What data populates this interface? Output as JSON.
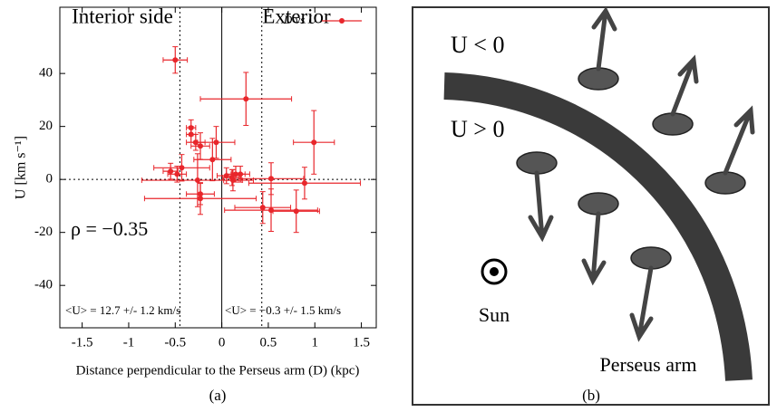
{
  "chart_data": {
    "type": "scatter",
    "xlabel": "Distance perpendicular to the Perseus arm (D) (kpc)",
    "ylabel": "U [km s⁻¹]",
    "caption": "(a)",
    "region_labels": [
      "Interior side",
      "Exterior"
    ],
    "annotations": [
      "ρ = −0.35",
      "<U> = 12.7 +/- 1.2 km/s",
      "<U> = −0.3 +/- 1.5 km/s"
    ],
    "xlim": [
      -1.74,
      1.66
    ],
    "ylim": [
      -56,
      65
    ],
    "xticks": [
      -1.5,
      -1,
      -0.5,
      0,
      0.5,
      1,
      1.5
    ],
    "yticks": [
      -40,
      -20,
      0,
      20,
      40
    ],
    "dotted_vlines": [
      -0.45,
      0.43
    ],
    "legend": "upper right",
    "series": [
      {
        "name": "D vs U",
        "color": "#e8262b",
        "x": [
          -0.5,
          0.26,
          0.99,
          -0.33,
          -0.33,
          -0.28,
          -0.23,
          -0.06,
          -0.1,
          -0.43,
          -0.55,
          -0.48,
          -0.26,
          -0.23,
          -0.23,
          0.05,
          0.11,
          0.15,
          0.2,
          0.12,
          0.53,
          0.89,
          0.44,
          0.53,
          0.8
        ],
        "values": [
          45.1,
          30.4,
          14,
          19.5,
          17,
          14,
          12.6,
          14,
          7.5,
          4.4,
          3.1,
          2,
          -0.3,
          -5.5,
          -7.2,
          1.4,
          0.7,
          2,
          2,
          -0.3,
          0.3,
          -1.4,
          -10.6,
          -11.6,
          -12
        ],
        "xerr": [
          0.13,
          0.49,
          0.22,
          0.05,
          0.05,
          0.1,
          0.1,
          0.2,
          0.2,
          0.3,
          0.08,
          0.1,
          0.6,
          0.15,
          0.6,
          0.1,
          0.1,
          0.1,
          0.1,
          0.1,
          0.35,
          0.6,
          0.3,
          0.5,
          0.25
        ],
        "yerr": [
          5,
          10,
          12,
          3,
          3,
          3,
          5,
          6,
          8,
          5,
          3,
          3,
          10,
          4,
          6,
          3,
          3,
          3,
          3,
          4,
          6,
          6,
          6,
          8,
          8
        ]
      }
    ]
  },
  "diagram": {
    "labels": [
      "U < 0",
      "U > 0",
      "Sun",
      "Perseus arm"
    ],
    "caption": "(b)"
  }
}
